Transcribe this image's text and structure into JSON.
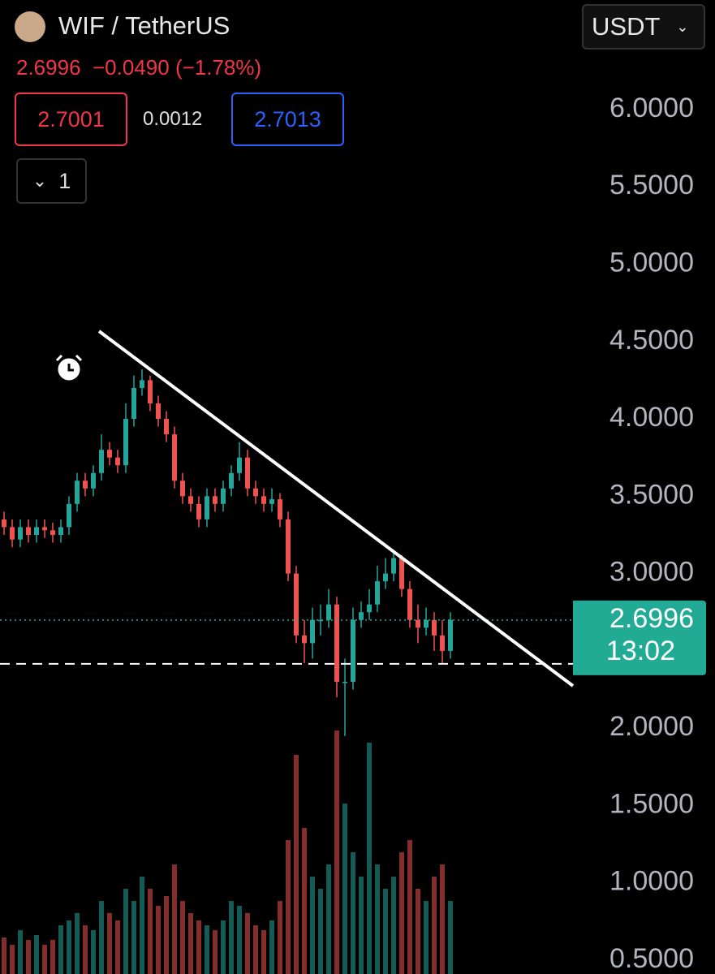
{
  "header": {
    "symbol": "WIF / TetherUS",
    "price": "2.6996",
    "change": "−0.0490",
    "change_pct": "(−1.78%)",
    "bid": "2.7001",
    "spread": "0.0012",
    "ask": "2.7013",
    "indicators_count": "1",
    "currency": "USDT"
  },
  "chart_data": {
    "type": "candlestick",
    "open": [
      3.35,
      3.3,
      3.22,
      3.3,
      3.25,
      3.3,
      3.28,
      3.25,
      3.3,
      3.45,
      3.6,
      3.55,
      3.65,
      3.8,
      3.75,
      3.7,
      4.0,
      4.2,
      4.25,
      4.1,
      4.0,
      3.9,
      3.6,
      3.5,
      3.45,
      3.35,
      3.5,
      3.45,
      3.55,
      3.65,
      3.75,
      3.55,
      3.5,
      3.45,
      3.48,
      3.35,
      3.0,
      2.6,
      2.55,
      2.7,
      2.7,
      2.8,
      2.3,
      2.3,
      2.7,
      2.75,
      2.8,
      2.95,
      3.0,
      3.1,
      2.9,
      2.7,
      2.65,
      2.7,
      2.6,
      2.5
    ],
    "high": [
      3.4,
      3.35,
      3.35,
      3.35,
      3.35,
      3.35,
      3.33,
      3.35,
      3.5,
      3.65,
      3.65,
      3.7,
      3.9,
      3.85,
      3.8,
      4.1,
      4.28,
      4.32,
      4.28,
      4.15,
      4.05,
      3.95,
      3.65,
      3.55,
      3.5,
      3.55,
      3.55,
      3.6,
      3.7,
      3.85,
      3.8,
      3.6,
      3.55,
      3.55,
      3.52,
      3.4,
      3.05,
      2.7,
      2.78,
      2.8,
      2.9,
      2.85,
      2.45,
      2.78,
      2.82,
      2.9,
      3.05,
      3.1,
      3.15,
      3.12,
      2.95,
      2.8,
      2.78,
      2.75,
      2.7,
      2.75
    ],
    "low": [
      3.25,
      3.17,
      3.17,
      3.2,
      3.2,
      3.23,
      3.2,
      3.2,
      3.25,
      3.4,
      3.5,
      3.5,
      3.6,
      3.7,
      3.65,
      3.65,
      3.95,
      4.15,
      4.05,
      3.95,
      3.85,
      3.55,
      3.45,
      3.4,
      3.3,
      3.3,
      3.4,
      3.4,
      3.5,
      3.6,
      3.5,
      3.45,
      3.4,
      3.4,
      3.3,
      2.95,
      2.55,
      2.42,
      2.45,
      2.6,
      2.65,
      2.2,
      1.95,
      2.25,
      2.65,
      2.7,
      2.75,
      2.9,
      2.95,
      2.85,
      2.65,
      2.55,
      2.6,
      2.5,
      2.42,
      2.45
    ],
    "close": [
      3.3,
      3.22,
      3.3,
      3.25,
      3.3,
      3.28,
      3.25,
      3.3,
      3.45,
      3.6,
      3.55,
      3.65,
      3.8,
      3.75,
      3.7,
      4.0,
      4.2,
      4.25,
      4.1,
      4.0,
      3.9,
      3.6,
      3.5,
      3.45,
      3.35,
      3.5,
      3.45,
      3.55,
      3.65,
      3.75,
      3.55,
      3.5,
      3.45,
      3.48,
      3.35,
      3.0,
      2.6,
      2.55,
      2.7,
      2.7,
      2.8,
      2.3,
      2.3,
      2.7,
      2.75,
      2.8,
      2.95,
      3.0,
      3.1,
      2.9,
      2.7,
      2.65,
      2.7,
      2.6,
      2.5,
      2.7
    ],
    "volume": [
      15,
      12,
      18,
      14,
      16,
      12,
      14,
      20,
      22,
      25,
      20,
      18,
      30,
      25,
      22,
      35,
      30,
      40,
      35,
      28,
      32,
      45,
      30,
      25,
      22,
      20,
      18,
      22,
      30,
      28,
      25,
      20,
      18,
      22,
      30,
      55,
      90,
      60,
      40,
      35,
      45,
      100,
      70,
      50,
      40,
      95,
      45,
      35,
      40,
      50,
      55,
      35,
      30,
      40,
      45,
      30
    ],
    "up_color": "#26a69a",
    "down_color": "#ef5350",
    "ylim": [
      0.411,
      6.708
    ],
    "yticks": [
      {
        "value": 6,
        "label": "6.0000"
      },
      {
        "value": 5.5,
        "label": "5.5000"
      },
      {
        "value": 5,
        "label": "5.0000"
      },
      {
        "value": 4.5,
        "label": "4.5000"
      },
      {
        "value": 4,
        "label": "4.0000"
      },
      {
        "value": 3.5,
        "label": "3.5000"
      },
      {
        "value": 3,
        "label": "3.0000"
      },
      {
        "value": 2,
        "label": "2.0000"
      },
      {
        "value": 1.5,
        "label": "1.5000"
      },
      {
        "value": 1,
        "label": "1.0000"
      },
      {
        "value": 0.5,
        "label": "0.5000"
      }
    ],
    "last_price": 2.6996,
    "countdown": "13:02",
    "hline": 2.416,
    "trendline": {
      "x": [
        11.7,
        70.1
      ],
      "y": [
        4.567,
        2.274
      ]
    }
  }
}
